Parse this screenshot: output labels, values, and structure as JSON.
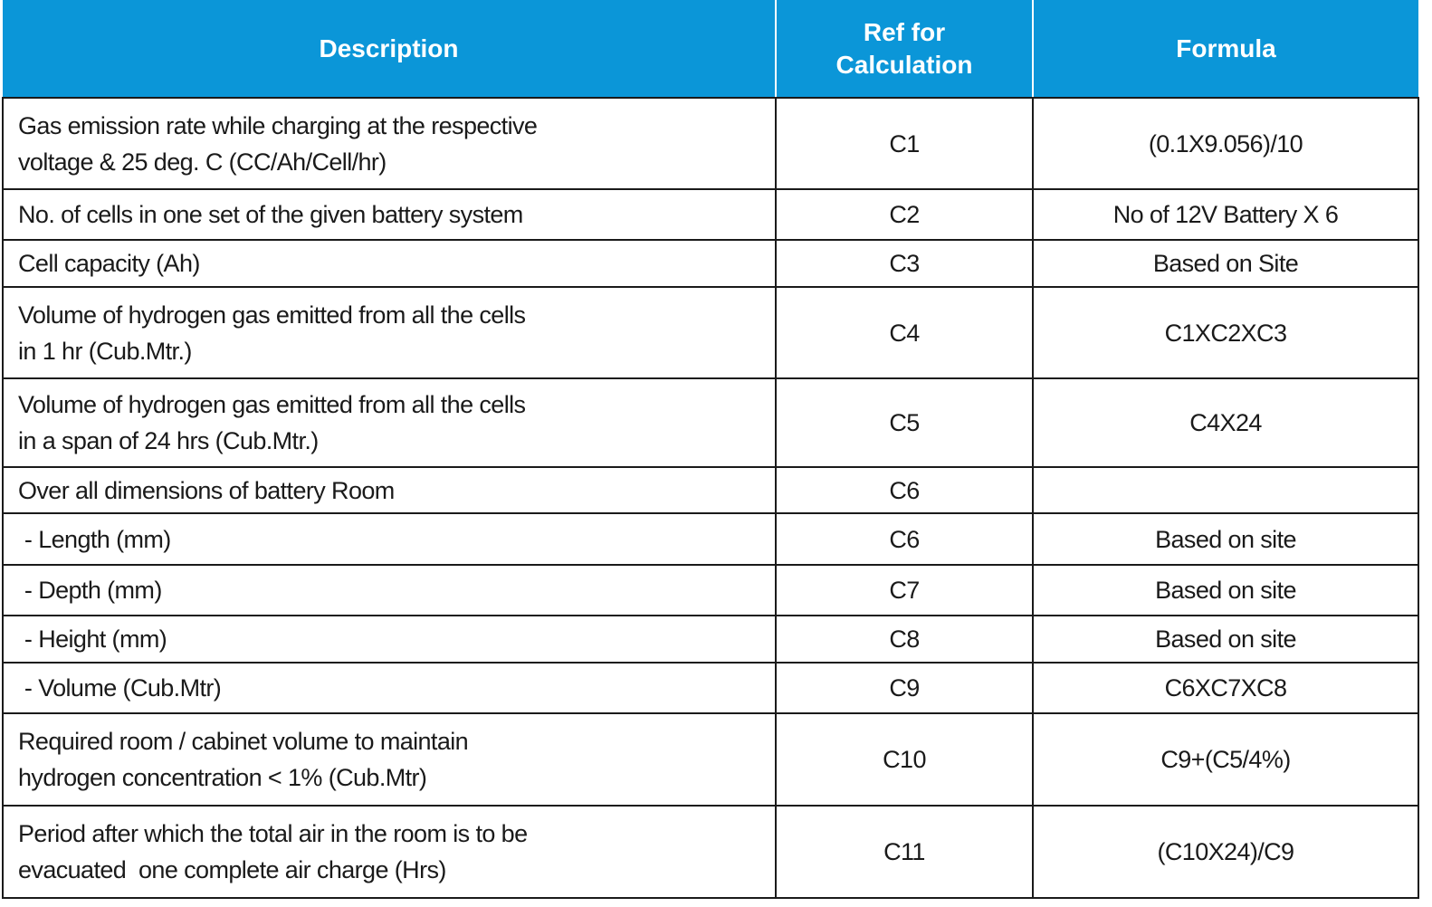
{
  "table": {
    "header": [
      "Description",
      "Ref for\nCalculation",
      "Formula"
    ],
    "rows": [
      [
        "Gas emission rate while charging at the respective\nvoltage & 25 deg. C (CC/Ah/Cell/hr)",
        "C1",
        "(0.1X9.056)/10"
      ],
      [
        "No. of cells in one set of the given battery system",
        "C2",
        "No of 12V Battery X 6"
      ],
      [
        "Cell capacity (Ah)",
        "C3",
        "Based on Site"
      ],
      [
        "Volume of hydrogen gas emitted from all the cells\nin 1 hr (Cub.Mtr.)",
        "C4",
        "C1XC2XC3"
      ],
      [
        "Volume of hydrogen gas emitted from all the cells\nin a span of 24 hrs (Cub.Mtr.)",
        "C5",
        "C4X24"
      ],
      [
        "Over all dimensions of battery Room",
        "C6",
        ""
      ],
      [
        " - Length (mm)",
        "C6",
        "Based on site"
      ],
      [
        " - Depth (mm)",
        "C7",
        "Based on site"
      ],
      [
        " - Height (mm)",
        "C8",
        "Based on site"
      ],
      [
        " - Volume (Cub.Mtr)",
        "C9",
        "C6XC7XC8"
      ],
      [
        "Required room / cabinet volume to maintain\nhydrogen concentration < 1% (Cub.Mtr)",
        "C10",
        "C9+(C5/4%)"
      ],
      [
        "Period after which the total air in the room is to be\nevacuated  one complete air charge (Hrs)",
        "C11",
        "(C10X24)/C9"
      ]
    ]
  }
}
